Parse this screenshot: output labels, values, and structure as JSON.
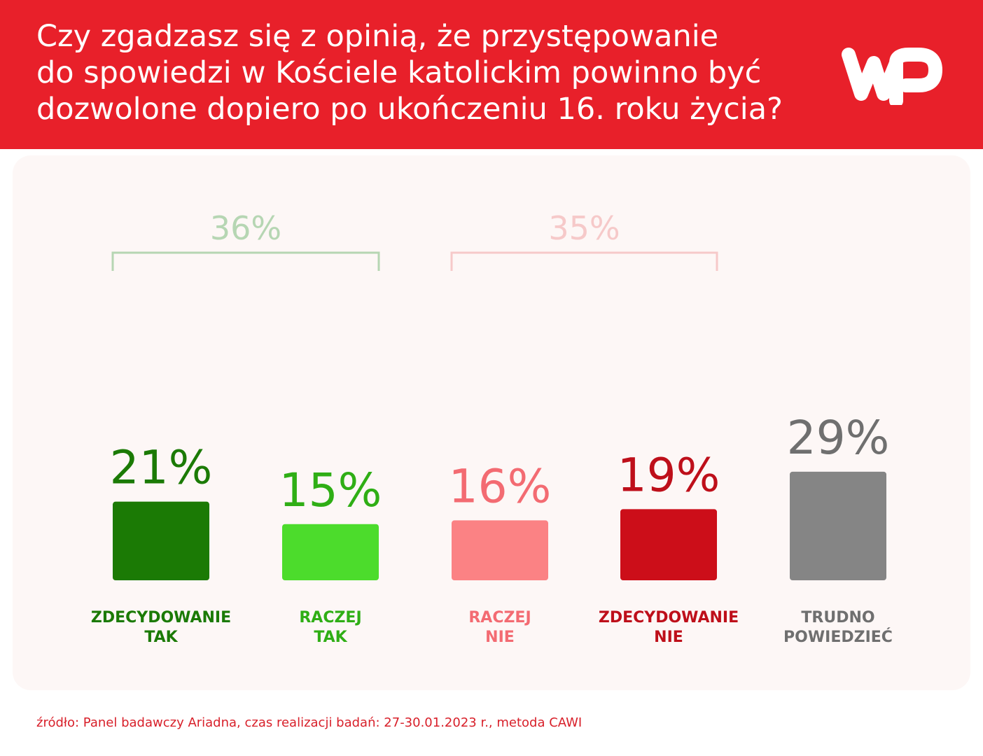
{
  "header": {
    "title_lines": [
      "Czy zgadzasz się z opinią, że przystępowanie",
      "do spowiedzi w Kościele katolickim powinno być",
      "dozwolone dopiero po ukończeniu 16. roku życia?"
    ],
    "logo_icon": "wp-logo-icon"
  },
  "chart_data": {
    "type": "bar",
    "title": "Czy zgadzasz się z opinią, że przystępowanie do spowiedzi w Kościele katolickim powinno być dozwolone dopiero po ukończeniu 16. roku życia?",
    "categories": [
      [
        "ZDECYDOWANIE",
        "TAK"
      ],
      [
        "RACZEJ",
        "TAK"
      ],
      [
        "RACZEJ",
        "NIE"
      ],
      [
        "ZDECYDOWANIE",
        "NIE"
      ],
      [
        "TRUDNO",
        "POWIEDZIEĆ"
      ]
    ],
    "values": [
      21,
      15,
      16,
      19,
      29
    ],
    "value_labels": [
      "21%",
      "15%",
      "16%",
      "19%",
      "29%"
    ],
    "colors": [
      "#1b7a05",
      "#4cdc2c",
      "#fb8284",
      "#cc0e19",
      "#858585"
    ],
    "label_colors": [
      "#1b7a05",
      "#2fae15",
      "#f36b72",
      "#be0f1a",
      "#6f6f6f"
    ],
    "groups": [
      {
        "label": "36%",
        "from": 0,
        "to": 1,
        "color": "#b6d6b3"
      },
      {
        "label": "35%",
        "from": 2,
        "to": 3,
        "color": "#f6c9c9"
      }
    ],
    "xlabel": "",
    "ylabel": "",
    "grid": false,
    "legend": "none"
  },
  "footer": {
    "source": "źródło: Panel badawczy Ariadna, czas realizacji badań: 27-30.01.2023 r., metoda CAWI"
  }
}
